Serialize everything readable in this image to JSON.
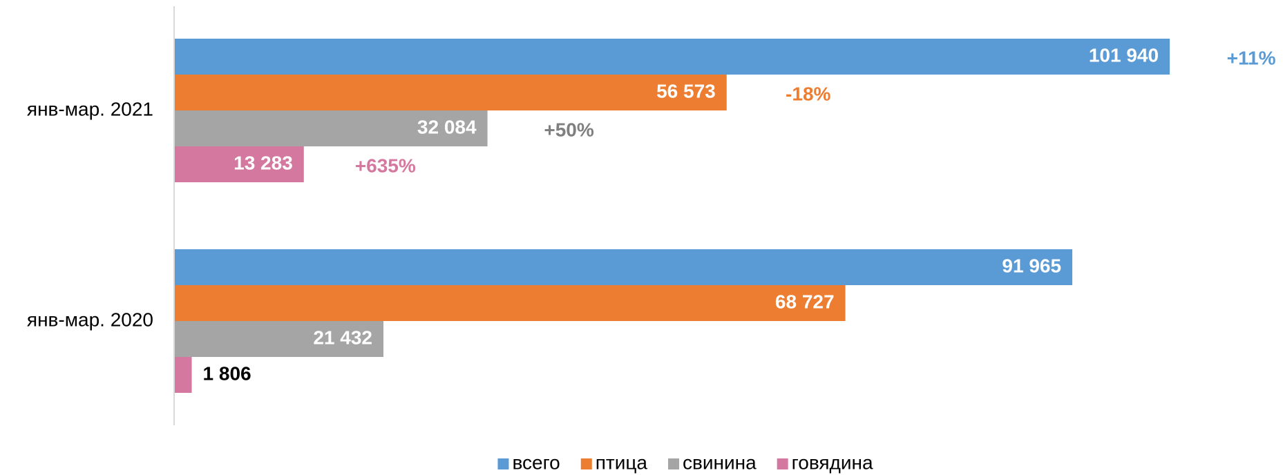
{
  "chart_data": {
    "type": "bar",
    "orientation": "horizontal",
    "categories": [
      "янв-мар. 2021",
      "янв-мар. 2020"
    ],
    "series": [
      {
        "name": "всего",
        "color": "#5b9bd5",
        "values": [
          101940,
          91965
        ],
        "value_labels": [
          "101 940",
          "91 965"
        ]
      },
      {
        "name": "птица",
        "color": "#ed7d31",
        "values": [
          56573,
          68727
        ],
        "value_labels": [
          "56 573",
          "68 727"
        ]
      },
      {
        "name": "свинина",
        "color": "#a5a5a5",
        "values": [
          32084,
          21432
        ],
        "value_labels": [
          "32 084",
          "21 432"
        ]
      },
      {
        "name": "говядина",
        "color": "#d5789f",
        "values": [
          13283,
          1806
        ],
        "value_labels": [
          "13 283",
          "1 806"
        ]
      }
    ],
    "annotations": [
      {
        "text": "+11%",
        "color": "#5b9bd5"
      },
      {
        "text": "-18%",
        "color": "#ed7d31"
      },
      {
        "text": "+50%",
        "color": "#7f7f7f"
      },
      {
        "text": "+635%",
        "color": "#d5789f"
      }
    ],
    "xlim": [
      0,
      110000
    ],
    "legend": "bottom"
  }
}
